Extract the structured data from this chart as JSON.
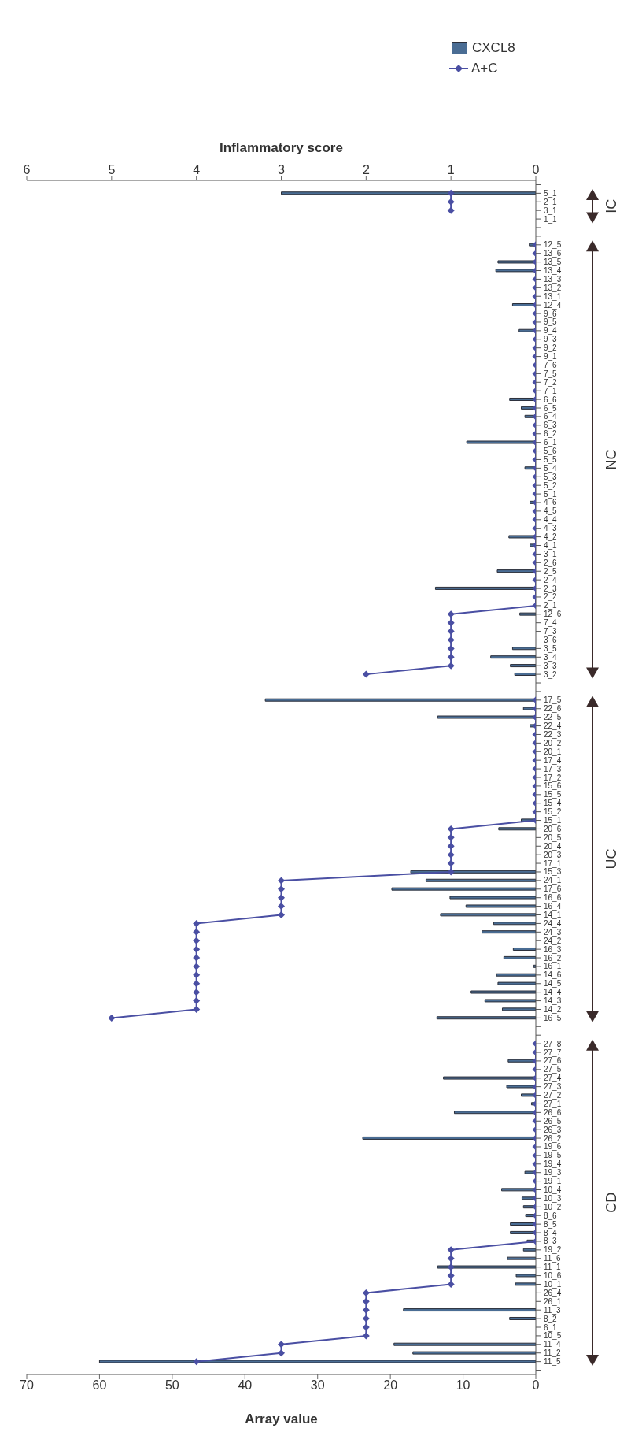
{
  "chart_data": {
    "type": "bar",
    "orientation": "horizontal",
    "xlabel": "Array value",
    "x2label": "Inflammatory score",
    "xlim": [
      70,
      0
    ],
    "xticks": [
      0,
      10,
      20,
      30,
      40,
      50,
      60,
      70
    ],
    "x2lim": [
      6,
      0
    ],
    "x2ticks": [
      0,
      1,
      2,
      3,
      4,
      5,
      6
    ],
    "legend": "top right",
    "marker": "diamond",
    "annotations": [
      "IC",
      "NC",
      "UC",
      "CD"
    ],
    "categories": [
      null,
      "5_1",
      "2_1",
      "3_1",
      "1_1",
      null,
      null,
      "12_5",
      "13_6",
      "13_5",
      "13_4",
      "13_3",
      "13_2",
      "13_1",
      "12_4",
      "9_6",
      "9_5",
      "9_4",
      "9_3",
      "9_2",
      "9_1",
      "7_6",
      "7_5",
      "7_2",
      "7_1",
      "6_6",
      "6_5",
      "6_4",
      "6_3",
      "6_2",
      "6_1",
      "5_6",
      "5_5",
      "5_4",
      "5_3",
      "5_2",
      "5_1",
      "4_6",
      "4_5",
      "4_4",
      "4_3",
      "4_2",
      "4_1",
      "3_1",
      "2_6",
      "2_5",
      "2_4",
      "2_3",
      "2_2",
      "2_1",
      "12_6",
      "7_4",
      "7_3",
      "3_6",
      "3_5",
      "3_4",
      "3_3",
      "3_2",
      null,
      null,
      "17_5",
      "22_6",
      "22_5",
      "22_4",
      "22_3",
      "20_2",
      "20_1",
      "17_4",
      "17_3",
      "17_2",
      "15_6",
      "15_5",
      "15_4",
      "15_2",
      "15_1",
      "20_6",
      "20_5",
      "20_4",
      "20_3",
      "17_1",
      "15_3",
      "24_1",
      "17_6",
      "16_6",
      "16_4",
      "14_1",
      "24_4",
      "24_3",
      "24_2",
      "16_3",
      "16_2",
      "16_1",
      "14_6",
      "14_5",
      "14_4",
      "14_3",
      "14_2",
      "16_5",
      null,
      null,
      "27_8",
      "27_7",
      "27_6",
      "27_5",
      "27_4",
      "27_3",
      "27_2",
      "27_1",
      "26_6",
      "26_5",
      "26_3",
      "26_2",
      "19_6",
      "19_5",
      "19_4",
      "19_3",
      "19_1",
      "10_4",
      "10_3",
      "10_2",
      "8_6",
      "8_5",
      "8_4",
      "8_3",
      "19_2",
      "11_6",
      "11_1",
      "10_6",
      "10_1",
      "26_4",
      "26_1",
      "11_3",
      "8_2",
      "6_1",
      "10_5",
      "11_4",
      "11_2",
      "11_5",
      null
    ],
    "series": [
      {
        "name": "CXCL8",
        "color": "#4a6d94",
        "values": [
          null,
          35,
          0,
          0,
          0,
          null,
          null,
          0.9,
          0,
          5.2,
          5.5,
          0,
          0,
          0,
          3.2,
          0,
          0,
          2.3,
          0,
          0,
          0,
          0,
          0,
          0,
          0,
          3.6,
          2.0,
          1.5,
          0,
          0,
          9.5,
          0,
          0,
          1.5,
          0,
          0,
          0,
          0.8,
          0,
          0,
          0,
          3.7,
          0.8,
          0,
          0,
          5.3,
          0,
          13.8,
          0,
          0,
          2.2,
          0,
          0,
          0,
          3.2,
          6.2,
          3.5,
          2.9,
          null,
          null,
          37.2,
          1.7,
          13.5,
          0.8,
          0,
          0,
          0,
          0,
          0,
          0,
          0,
          0,
          0,
          0,
          2.0,
          5.1,
          0,
          0,
          0,
          0,
          17.2,
          15.1,
          19.8,
          11.8,
          9.6,
          13.1,
          5.8,
          7.4,
          0,
          3.1,
          4.4,
          0.3,
          5.4,
          5.2,
          8.9,
          7.0,
          4.6,
          13.6,
          null,
          null,
          0,
          0,
          3.8,
          0,
          12.7,
          4.0,
          2.0,
          0.6,
          11.2,
          0,
          0,
          23.8,
          0,
          0,
          0,
          1.5,
          0,
          4.7,
          1.9,
          1.7,
          1.4,
          3.5,
          3.5,
          1.2,
          1.7,
          3.9,
          13.5,
          2.7,
          2.8,
          0,
          0,
          18.2,
          3.6,
          0,
          0,
          19.5,
          16.9,
          60,
          null
        ]
      },
      {
        "name": "A+C",
        "type": "line",
        "axis": "x2",
        "color": "#4a4fa3",
        "values": [
          null,
          1,
          1,
          1,
          null,
          null,
          null,
          0,
          0,
          0,
          0,
          0,
          0,
          0,
          0,
          0,
          0,
          0,
          0,
          0,
          0,
          0,
          0,
          0,
          0,
          0,
          0,
          0,
          0,
          0,
          0,
          0,
          0,
          0,
          0,
          0,
          0,
          0,
          0,
          0,
          0,
          0,
          0,
          0,
          0,
          0,
          0,
          0,
          0,
          0,
          1,
          1,
          1,
          1,
          1,
          1,
          1,
          2,
          null,
          null,
          0,
          0,
          0,
          0,
          0,
          0,
          0,
          0,
          0,
          0,
          0,
          0,
          0,
          0,
          0,
          1,
          1,
          1,
          1,
          1,
          1,
          3,
          3,
          3,
          3,
          3,
          4,
          4,
          4,
          4,
          4,
          4,
          4,
          4,
          4,
          4,
          4,
          5,
          null,
          null,
          0,
          0,
          0,
          0,
          0,
          0,
          0,
          0,
          0,
          0,
          0,
          0,
          0,
          0,
          0,
          0,
          0,
          0,
          0,
          0,
          0,
          0,
          0,
          0,
          1,
          1,
          1,
          1,
          1,
          2,
          2,
          2,
          2,
          2,
          2,
          3,
          3,
          4,
          null
        ]
      }
    ]
  }
}
